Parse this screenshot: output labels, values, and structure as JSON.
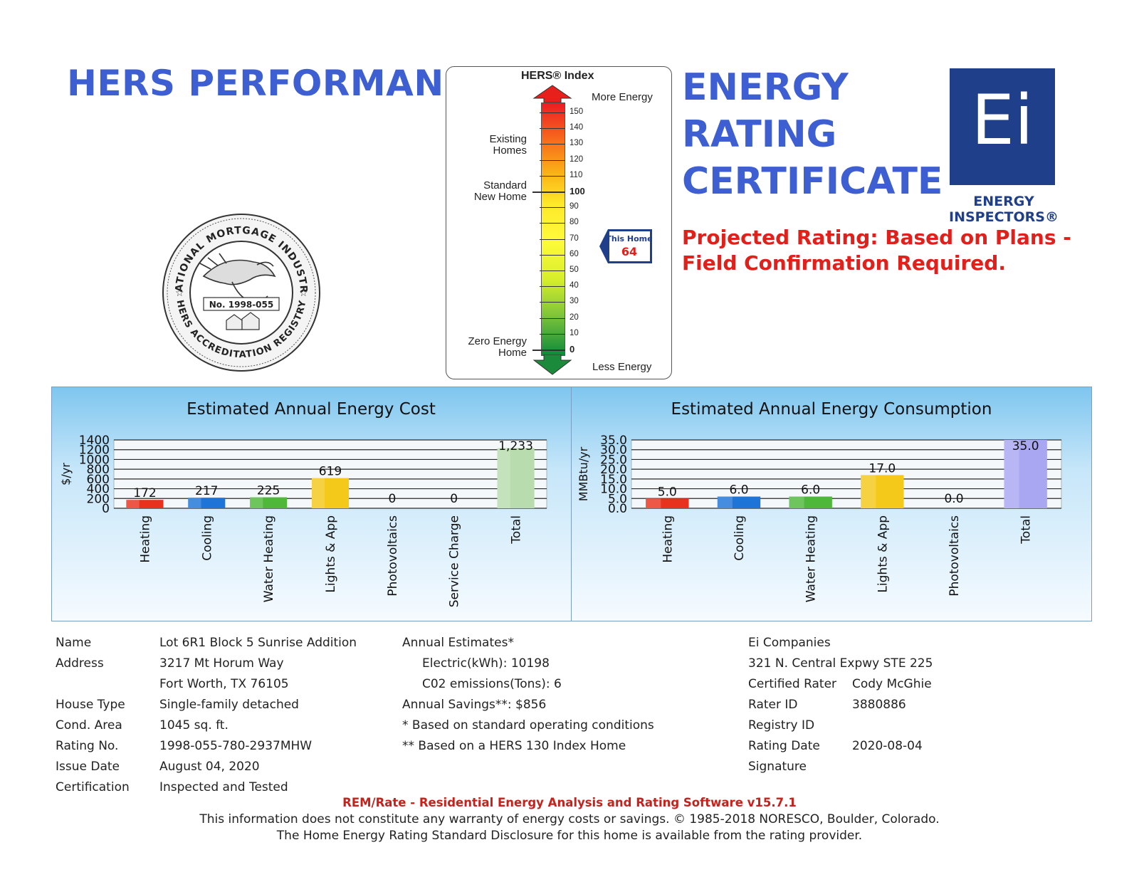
{
  "header": {
    "title": "HERS PERFORMANCE",
    "certificate_lines": [
      "ENERGY",
      "RATING",
      "CERTIFICATE"
    ],
    "logo_text": "Ei",
    "logo_caption": "ENERGY INSPECTORS®",
    "projected": "Projected Rating: Based on Plans - Field Confirmation Required."
  },
  "seal": {
    "top_text": "NATIONAL MORTGAGE INDUSTRY",
    "bottom_text": "HERS ACCREDITATION REGISTRY",
    "number": "No. 1998-055"
  },
  "hers_index": {
    "title": "HERS® Index",
    "more_energy": "More Energy",
    "less_energy": "Less Energy",
    "existing_homes": [
      "Existing",
      "Homes"
    ],
    "standard_new_home": [
      "Standard",
      "New Home"
    ],
    "zero_energy_home": [
      "Zero Energy",
      "Home"
    ],
    "ticks": [
      "150",
      "140",
      "130",
      "120",
      "110",
      "100",
      "90",
      "80",
      "70",
      "60",
      "50",
      "40",
      "30",
      "20",
      "10",
      "0"
    ],
    "this_home_label": "This Home",
    "this_home_value": "64"
  },
  "cost_chart_title": "Estimated Annual Energy Cost",
  "consumption_chart_title": "Estimated Annual Energy Consumption",
  "chart_data": [
    {
      "type": "bar",
      "title": "Estimated Annual Energy Cost",
      "ylabel": "$/yr",
      "ylim": [
        0,
        1400
      ],
      "yticks": [
        "0",
        "200",
        "400",
        "600",
        "800",
        "1000",
        "1200",
        "1400"
      ],
      "categories": [
        "Heating",
        "Cooling",
        "Water Heating",
        "Lights & App",
        "Photovoltaics",
        "Service Charge",
        "Total"
      ],
      "values": [
        172,
        217,
        225,
        619,
        0,
        0,
        1233
      ],
      "value_labels": [
        "172",
        "217",
        "225",
        "619",
        "0",
        "0",
        "1,233"
      ],
      "colors": [
        "#e8321e",
        "#1f74d8",
        "#4fb83a",
        "#f4c91a",
        "#999999",
        "#999999",
        "#b8dcae"
      ],
      "grid": true
    },
    {
      "type": "bar",
      "title": "Estimated Annual Energy Consumption",
      "ylabel": "MMBtu/yr",
      "ylim": [
        0,
        35
      ],
      "yticks": [
        "0.0",
        "5.0",
        "10.0",
        "15.0",
        "20.0",
        "25.0",
        "30.0",
        "35.0"
      ],
      "categories": [
        "Heating",
        "Cooling",
        "Water Heating",
        "Lights & App",
        "Photovoltaics",
        "Total"
      ],
      "values": [
        5.0,
        6.0,
        6.0,
        17.0,
        0.0,
        35.0
      ],
      "value_labels": [
        "5.0",
        "6.0",
        "6.0",
        "17.0",
        "0.0",
        "35.0"
      ],
      "colors": [
        "#e8321e",
        "#1f74d8",
        "#4fb83a",
        "#f4c91a",
        "#999999",
        "#a9a6f2"
      ],
      "grid": true
    }
  ],
  "info": {
    "name_label": "Name",
    "name": "Lot 6R1 Block 5 Sunrise Addition",
    "address_label": "Address",
    "address1": "3217 Mt Horum Way",
    "address2": "Fort Worth, TX 76105",
    "house_type_label": "House Type",
    "house_type": "Single-family detached",
    "cond_area_label": "Cond. Area",
    "cond_area": "1045 sq. ft.",
    "rating_no_label": "Rating No.",
    "rating_no": "1998-055-780-2937MHW",
    "issue_date_label": "Issue Date",
    "issue_date": "August 04, 2020",
    "certification_label": "Certification",
    "certification": "Inspected and Tested",
    "annual_estimates": "Annual Estimates*",
    "electric": "Electric(kWh):  10198",
    "co2": "C02 emissions(Tons): 6",
    "savings": "Annual Savings**:  $856",
    "note1": "* Based on standard operating conditions",
    "note2": "** Based on a HERS 130 Index Home",
    "company": "Ei Companies",
    "company_address": "321 N. Central Expwy STE 225",
    "certified_rater_label": "Certified Rater",
    "certified_rater": "Cody McGhie",
    "rater_id_label": "Rater ID",
    "rater_id": "3880886",
    "registry_id_label": "Registry ID",
    "rating_date_label": "Rating Date",
    "rating_date": "2020-08-04",
    "signature_label": "Signature"
  },
  "footer": {
    "software": "REM/Rate - Residential Energy Analysis and Rating Software v15.7.1",
    "disclaimer": "This information does not constitute any warranty of energy costs or savings. © 1985-2018 NORESCO, Boulder, Colorado.",
    "disclosure": "The Home Energy Rating Standard Disclosure for this home is available from the rating provider."
  }
}
